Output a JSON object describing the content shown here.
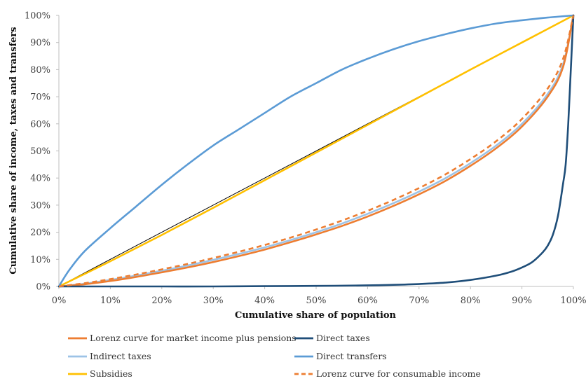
{
  "chart_data": {
    "type": "line",
    "title": "",
    "xlabel": "Cumulative share of population",
    "ylabel": "Cumulative share of income, taxes and transfers",
    "xlim": [
      0,
      100
    ],
    "ylim": [
      0,
      100
    ],
    "x_ticks": [
      "0%",
      "10%",
      "20%",
      "30%",
      "40%",
      "50%",
      "60%",
      "70%",
      "80%",
      "90%",
      "100%"
    ],
    "y_ticks": [
      "0%",
      "10%",
      "20%",
      "30%",
      "40%",
      "50%",
      "60%",
      "70%",
      "80%",
      "90%",
      "100%"
    ],
    "grid": false,
    "legend_position": "bottom",
    "equality_line": {
      "x": [
        0,
        100
      ],
      "y": [
        0,
        100
      ],
      "color": "#000000"
    },
    "series": [
      {
        "name": "Lorenz curve for market income plus pensions",
        "color": "#ED7D31",
        "dash": false,
        "x": [
          0,
          5,
          10,
          15,
          20,
          25,
          30,
          35,
          40,
          45,
          50,
          55,
          60,
          65,
          70,
          75,
          80,
          85,
          90,
          95,
          98,
          100
        ],
        "y": [
          0,
          0.8,
          2,
          3.5,
          5.2,
          7,
          9,
          11.2,
          13.6,
          16.3,
          19.2,
          22.3,
          25.8,
          29.7,
          34,
          38.8,
          44.5,
          51,
          59,
          70,
          81,
          100
        ]
      },
      {
        "name": "Direct taxes",
        "color": "#1F4E79",
        "dash": false,
        "x": [
          0,
          10,
          20,
          30,
          40,
          50,
          60,
          65,
          70,
          75,
          80,
          85,
          88,
          90,
          92,
          94,
          95,
          96,
          97,
          98,
          98.5,
          99,
          99.5,
          100
        ],
        "y": [
          0,
          0,
          0,
          0,
          0.1,
          0.2,
          0.4,
          0.6,
          0.9,
          1.4,
          2.4,
          4,
          5.5,
          7,
          9,
          12.5,
          15,
          19,
          26,
          38,
          45,
          60,
          80,
          100
        ]
      },
      {
        "name": "Indirect taxes",
        "color": "#9DC3E6",
        "dash": false,
        "x": [
          0,
          5,
          10,
          15,
          20,
          25,
          30,
          35,
          40,
          45,
          50,
          55,
          60,
          65,
          70,
          75,
          80,
          85,
          90,
          95,
          98,
          100
        ],
        "y": [
          0,
          1,
          2.4,
          4,
          5.8,
          7.7,
          9.8,
          12,
          14.4,
          17.1,
          20,
          23.2,
          26.8,
          30.7,
          35,
          39.8,
          45.5,
          52,
          60,
          71,
          82,
          100
        ]
      },
      {
        "name": "Direct transfers",
        "color": "#5B9BD5",
        "dash": false,
        "x": [
          0,
          2,
          5,
          10,
          15,
          20,
          25,
          30,
          35,
          40,
          45,
          50,
          55,
          60,
          65,
          70,
          75,
          80,
          85,
          90,
          95,
          100
        ],
        "y": [
          0,
          6,
          13,
          21.5,
          29.5,
          37.5,
          45,
          52,
          58,
          64,
          70,
          75,
          80,
          84,
          87.5,
          90.5,
          93,
          95.2,
          97,
          98.2,
          99.2,
          100
        ]
      },
      {
        "name": "Subsidies",
        "color": "#FFC000",
        "dash": false,
        "x": [
          0,
          10,
          20,
          30,
          40,
          50,
          60,
          70,
          80,
          90,
          100
        ],
        "y": [
          0,
          9.3,
          19,
          29,
          39.2,
          49.4,
          59.6,
          69.8,
          80,
          90,
          100
        ]
      },
      {
        "name": "Lorenz curve for consumable income",
        "color": "#ED7D31",
        "dash": true,
        "x": [
          0,
          5,
          10,
          15,
          20,
          25,
          30,
          35,
          40,
          45,
          50,
          55,
          60,
          65,
          70,
          75,
          80,
          85,
          90,
          95,
          98,
          100
        ],
        "y": [
          0,
          1.2,
          2.7,
          4.4,
          6.3,
          8.3,
          10.5,
          12.8,
          15.3,
          18,
          21,
          24.3,
          27.9,
          31.9,
          36.3,
          41.2,
          47,
          53.6,
          61.8,
          73,
          84,
          100
        ]
      }
    ]
  }
}
